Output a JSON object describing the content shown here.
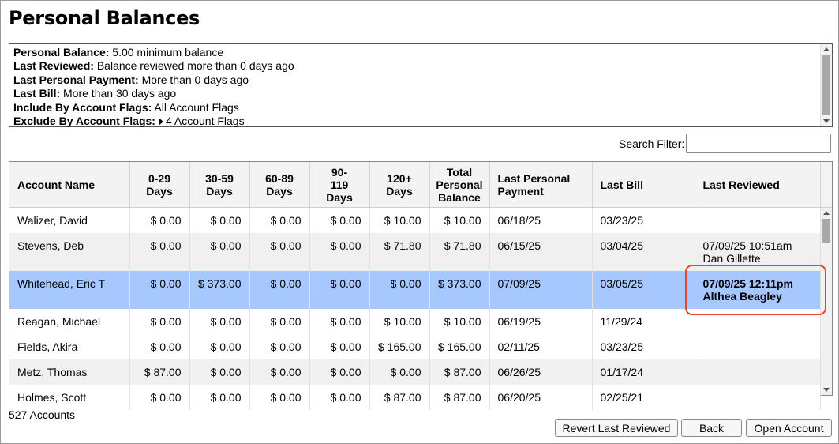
{
  "title": "Personal Balances",
  "criteria": [
    {
      "label": "Personal Balance:",
      "value": "5.00 minimum balance"
    },
    {
      "label": "Last Reviewed:",
      "value": "Balance reviewed more than 0 days ago"
    },
    {
      "label": "Last Personal Payment:",
      "value": "More than 0 days ago"
    },
    {
      "label": "Last Bill:",
      "value": "More than 30 days ago"
    },
    {
      "label": "Include By Account Flags:",
      "value": "All Account Flags"
    },
    {
      "label": "Exclude By Account Flags:",
      "value": "4 Account Flags"
    }
  ],
  "search": {
    "label": "Search Filter:",
    "value": "",
    "placeholder": ""
  },
  "table": {
    "headers": {
      "account_name": "Account Name",
      "d0_29": [
        "0-29",
        "Days"
      ],
      "d30_59": [
        "30-59",
        "Days"
      ],
      "d60_89": [
        "60-89",
        "Days"
      ],
      "d90_119": [
        "90-",
        "119",
        "Days"
      ],
      "d120": [
        "120+",
        "Days"
      ],
      "total": [
        "Total",
        "Personal",
        "Balance"
      ],
      "last_payment": [
        "Last Personal",
        "Payment"
      ],
      "last_bill": "Last Bill",
      "last_reviewed": "Last Reviewed"
    },
    "rows": [
      {
        "name": "Walizer, David",
        "d0": "$ 0.00",
        "d30": "$ 0.00",
        "d60": "$ 0.00",
        "d90": "$ 0.00",
        "d120": "$ 10.00",
        "total": "$ 10.00",
        "last_payment": "06/18/25",
        "last_bill": "03/23/25",
        "reviewed_date": "",
        "reviewed_by": ""
      },
      {
        "name": "Stevens, Deb",
        "d0": "$ 0.00",
        "d30": "$ 0.00",
        "d60": "$ 0.00",
        "d90": "$ 0.00",
        "d120": "$ 71.80",
        "total": "$ 71.80",
        "last_payment": "06/15/25",
        "last_bill": "03/04/25",
        "reviewed_date": "07/09/25 10:51am",
        "reviewed_by": "Dan Gillette"
      },
      {
        "name": "Whitehead, Eric T",
        "d0": "$ 0.00",
        "d30": "$ 373.00",
        "d60": "$ 0.00",
        "d90": "$ 0.00",
        "d120": "$ 0.00",
        "total": "$ 373.00",
        "last_payment": "07/09/25",
        "last_bill": "03/05/25",
        "reviewed_date": "07/09/25 12:11pm",
        "reviewed_by": "Althea Beagley"
      },
      {
        "name": "Reagan, Michael",
        "d0": "$ 0.00",
        "d30": "$ 0.00",
        "d60": "$ 0.00",
        "d90": "$ 0.00",
        "d120": "$ 10.00",
        "total": "$ 10.00",
        "last_payment": "06/19/25",
        "last_bill": "11/29/24",
        "reviewed_date": "",
        "reviewed_by": ""
      },
      {
        "name": "Fields, Akira",
        "d0": "$ 0.00",
        "d30": "$ 0.00",
        "d60": "$ 0.00",
        "d90": "$ 0.00",
        "d120": "$ 165.00",
        "total": "$ 165.00",
        "last_payment": "02/11/25",
        "last_bill": "03/23/25",
        "reviewed_date": "",
        "reviewed_by": ""
      },
      {
        "name": "Metz, Thomas",
        "d0": "$ 87.00",
        "d30": "$ 0.00",
        "d60": "$ 0.00",
        "d90": "$ 0.00",
        "d120": "$ 0.00",
        "total": "$ 87.00",
        "last_payment": "06/26/25",
        "last_bill": "01/17/24",
        "reviewed_date": "",
        "reviewed_by": ""
      },
      {
        "name": "Holmes, Scott",
        "d0": "$ 0.00",
        "d30": "$ 0.00",
        "d60": "$ 0.00",
        "d90": "$ 0.00",
        "d120": "$ 87.00",
        "total": "$ 87.00",
        "last_payment": "06/20/25",
        "last_bill": "02/25/21",
        "reviewed_date": "",
        "reviewed_by": ""
      }
    ]
  },
  "footer": {
    "count": "527 Accounts",
    "revert_label": "Revert Last Reviewed",
    "back_label": "Back",
    "open_label": "Open Account"
  },
  "colors": {
    "selected_row": "#a6c8ff",
    "highlight": "#e8442b"
  }
}
